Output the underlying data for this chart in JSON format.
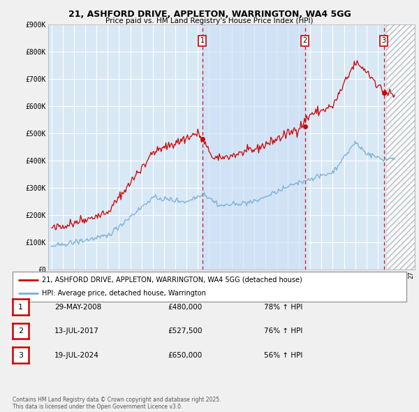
{
  "title": "21, ASHFORD DRIVE, APPLETON, WARRINGTON, WA4 5GG",
  "subtitle": "Price paid vs. HM Land Registry's House Price Index (HPI)",
  "fig_bg_color": "#f0f0f0",
  "plot_bg_color": "#d8e8f5",
  "grid_color": "#ffffff",
  "red_line_color": "#cc0000",
  "blue_line_color": "#7aaed6",
  "shade_color": "#ccdff5",
  "hatch_color": "#b0b0b0",
  "ylim": [
    0,
    900000
  ],
  "yticks": [
    0,
    100000,
    200000,
    300000,
    400000,
    500000,
    600000,
    700000,
    800000,
    900000
  ],
  "ytick_labels": [
    "£0",
    "£100K",
    "£200K",
    "£300K",
    "£400K",
    "£500K",
    "£600K",
    "£700K",
    "£800K",
    "£900K"
  ],
  "legend_entries": [
    {
      "label": "21, ASHFORD DRIVE, APPLETON, WARRINGTON, WA4 5GG (detached house)",
      "color": "#cc0000"
    },
    {
      "label": "HPI: Average price, detached house, Warrington",
      "color": "#7aaed6"
    }
  ],
  "table_rows": [
    {
      "num": "1",
      "date": "29-MAY-2008",
      "price": "£480,000",
      "hpi": "78% ↑ HPI"
    },
    {
      "num": "2",
      "date": "13-JUL-2017",
      "price": "£527,500",
      "hpi": "76% ↑ HPI"
    },
    {
      "num": "3",
      "date": "19-JUL-2024",
      "price": "£650,000",
      "hpi": "56% ↑ HPI"
    }
  ],
  "footnote": "Contains HM Land Registry data © Crown copyright and database right 2025.\nThis data is licensed under the Open Government Licence v3.0.",
  "trans_years": [
    2008.4,
    2017.54,
    2024.54
  ],
  "trans_prices": [
    480000,
    527500,
    650000
  ],
  "trans_labels": [
    "1",
    "2",
    "3"
  ],
  "shade_x_start": 2008.4,
  "shade_x_end": 2017.54,
  "hatch_x_start": 2024.75,
  "hatch_x_end": 2027.3,
  "xlim": [
    1994.7,
    2027.3
  ]
}
